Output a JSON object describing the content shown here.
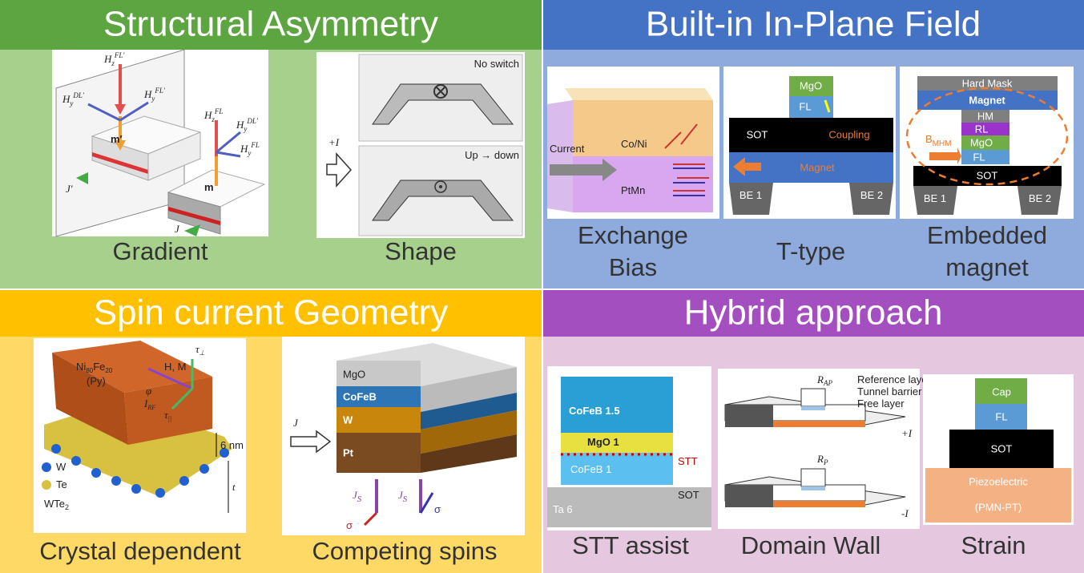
{
  "panels": [
    {
      "title": "Structural Asymmetry",
      "items": [
        {
          "label": "Gradient",
          "vectors": [
            {
              "base": "H",
              "sub": "z",
              "sup": "FL′"
            },
            {
              "base": "H",
              "sub": "y",
              "sup": "DL′"
            },
            {
              "base": "H",
              "sub": "y",
              "sup": "FL′"
            },
            {
              "base": "H",
              "sub": "z",
              "sup": "FL"
            },
            {
              "base": "H",
              "sub": "y",
              "sup": "DL′"
            },
            {
              "base": "H",
              "sub": "y",
              "sup": "FL"
            }
          ],
          "moments": [
            "m′",
            "m"
          ],
          "currents": [
            "J′",
            "J"
          ]
        },
        {
          "label": "Shape",
          "states": [
            "No switch",
            "Up → down"
          ],
          "current": "+I"
        }
      ]
    },
    {
      "title": "Built-in In-Plane Field",
      "items": [
        {
          "label": [
            "Exchange",
            "Bias"
          ],
          "texts": [
            "Current",
            "Co/Ni",
            "PtMn"
          ]
        },
        {
          "label": "T-type",
          "texts": [
            "MgO",
            "FL",
            "SOT",
            "Coupling",
            "Magnet",
            "BE 1",
            "BE 2"
          ]
        },
        {
          "label": [
            "Embedded",
            "magnet"
          ],
          "texts": [
            "Hard Mask",
            "Magnet",
            "HM",
            "RL",
            "MgO",
            "FL",
            "SOT",
            "BE 1",
            "BE 2"
          ],
          "field": {
            "base": "B",
            "sub": "MHM"
          }
        }
      ]
    },
    {
      "title": "Spin current Geometry",
      "items": [
        {
          "label": "Crystal dependent",
          "material": [
            "Ni",
            "80",
            "Fe",
            "20",
            "(Py)"
          ],
          "texts": [
            "H, M",
            "φ",
            "6 nm",
            "t",
            "W",
            "Te"
          ],
          "current": {
            "base": "I",
            "sub": "RF"
          },
          "torques": [
            {
              "base": "τ",
              "sub": "⊥"
            },
            {
              "base": "τ",
              "sub": "||"
            }
          ],
          "crystal": {
            "base": "WTe",
            "sub": "2"
          }
        },
        {
          "label": "Competing spins",
          "layers": [
            "MgO",
            "CoFeB",
            "W",
            "Pt"
          ],
          "current": "J",
          "spins": [
            {
              "base": "J",
              "sub": "S",
              "sigma": "σ"
            },
            {
              "base": "J",
              "sub": "S",
              "sigma": "σ"
            }
          ]
        }
      ]
    },
    {
      "title": "Hybrid approach",
      "items": [
        {
          "label": "STT assist",
          "texts": [
            "CoFeB 1.5",
            "MgO 1",
            "CoFeB 1",
            "STT",
            "SOT",
            "Ta 6"
          ]
        },
        {
          "label": "Domain Wall",
          "texts": [
            "Reference layer",
            "Tunnel barrier",
            "Free layer",
            "+I",
            "-I"
          ],
          "resistances": [
            {
              "base": "R",
              "sub": "AP"
            },
            {
              "base": "R",
              "sub": "P"
            }
          ]
        },
        {
          "label": "Strain",
          "texts": [
            "Cap",
            "FL",
            "SOT",
            "Piezoelectric",
            "(PMN-PT)"
          ]
        }
      ]
    }
  ]
}
